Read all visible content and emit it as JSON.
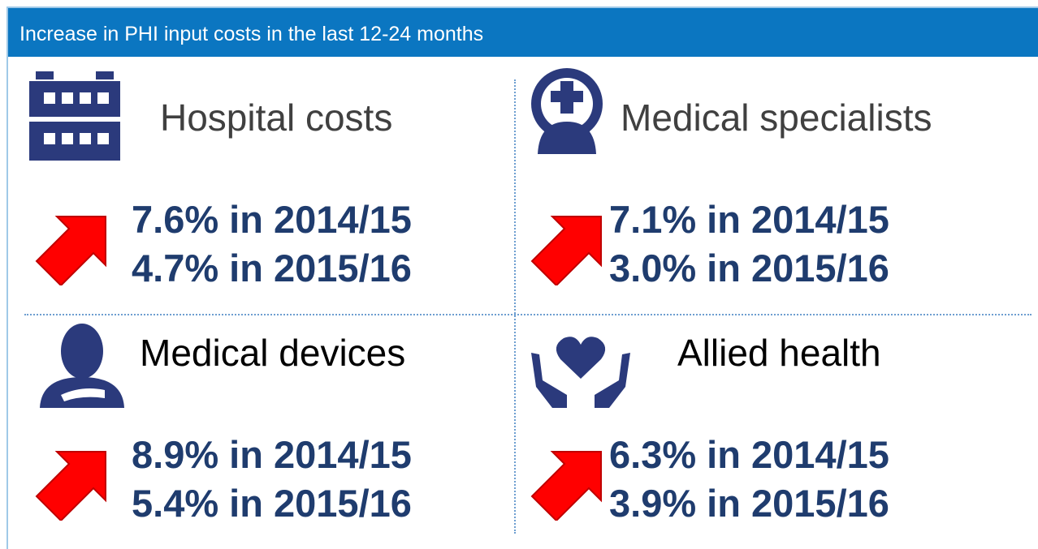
{
  "header": {
    "title": "Increase in PHI input costs in the last 12-24 months"
  },
  "panels": [
    {
      "title": "Hospital costs",
      "lines": [
        "7.6% in 2014/15",
        "4.7% in 2015/16"
      ]
    },
    {
      "title": "Medical specialists",
      "lines": [
        "7.1% in 2014/15",
        "3.0% in 2015/16"
      ]
    },
    {
      "title": "Medical devices",
      "lines": [
        "8.9% in 2014/15",
        "5.4% in 2015/16"
      ]
    },
    {
      "title": "Allied health",
      "lines": [
        "6.3% in 2014/15",
        "3.9% in 2015/16"
      ]
    }
  ]
}
